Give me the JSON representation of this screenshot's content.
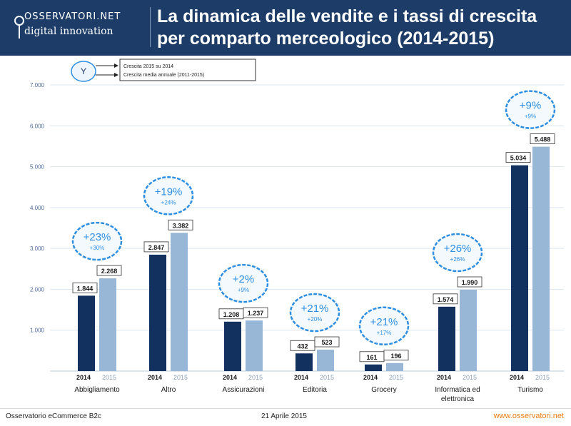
{
  "header": {
    "logo_top": "OSSERVATORI.NET",
    "logo_bottom": "digital innovation",
    "title": "La dinamica delle vendite e i tassi di crescita per comparto merceologico (2014-2015)"
  },
  "legend": {
    "symbol": "Y",
    "items": [
      "Crescita 2015 su 2014",
      "Crescita media annuale (2011-2015)"
    ]
  },
  "footer": {
    "left": "Osservatorio eCommerce B2c",
    "center": "21 Aprile 2015",
    "right": "www.osservatori.net"
  },
  "colors": {
    "header_bg": "#1d3d68",
    "bar_2014": "#13315f",
    "bar_2015": "#98b7d6",
    "ellipse_stroke": "#2e8fe0",
    "ellipse_text": "#2e8fe0",
    "footer_accent": "#e8801a"
  },
  "chart_data": {
    "type": "bar",
    "categories": [
      "Abbigliamento",
      "Altro",
      "Assicurazioni",
      "Editoria",
      "Grocery",
      "Informatica ed elettronica",
      "Turismo"
    ],
    "series": [
      {
        "name": "2014",
        "values": [
          1844,
          2847,
          1208,
          432,
          161,
          1574,
          5034
        ],
        "labels": [
          "1.844",
          "2.847",
          "1.208",
          "432",
          "161",
          "1.574",
          "5.034"
        ]
      },
      {
        "name": "2015",
        "values": [
          2268,
          3382,
          1237,
          523,
          196,
          1990,
          5488
        ],
        "labels": [
          "2.268",
          "3.382",
          "1.237",
          "523",
          "196",
          "1.990",
          "5.488"
        ]
      }
    ],
    "growth_2015_vs_2014": [
      "+23%",
      "+19%",
      "+2%",
      "+21%",
      "+21%",
      "+26%",
      "+9%"
    ],
    "growth_avg_2011_2015": [
      "+30%",
      "+24%",
      "+9%",
      "+20%",
      "+17%",
      "+26%",
      "+9%"
    ],
    "ylim": [
      0,
      7000
    ],
    "yticks": [
      0,
      1000,
      2000,
      3000,
      4000,
      5000,
      6000,
      7000
    ],
    "ytick_labels": [
      "",
      "1.000",
      "2.000",
      "3.000",
      "4.000",
      "5.000",
      "6.000",
      "7.000"
    ],
    "grid": true,
    "title": "",
    "xlabel": "",
    "ylabel": ""
  }
}
